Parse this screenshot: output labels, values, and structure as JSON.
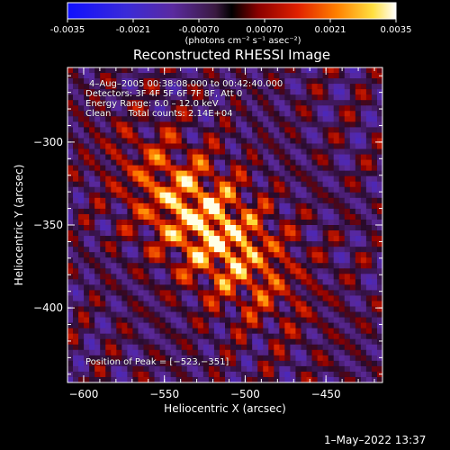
{
  "colorbar": {
    "tick_labels": [
      "-0.0035",
      "-0.0021",
      "-0.00070",
      "0.00070",
      "0.0021",
      "0.0035"
    ],
    "unit_label": "(photons cm⁻² s⁻¹ asec⁻²)",
    "range": [
      -0.0035,
      0.0035
    ]
  },
  "chart_data": {
    "type": "heatmap",
    "title": "Reconstructed RHESSI Image",
    "xlabel": "Heliocentric X (arcsec)",
    "ylabel": "Heliocentric Y (arcsec)",
    "xlim": [
      -610,
      -415
    ],
    "ylim": [
      -445,
      -255
    ],
    "x_ticks": [
      -600,
      -550,
      -500,
      -450
    ],
    "y_ticks": [
      -300,
      -350,
      -400
    ],
    "x_tick_labels": [
      "−600",
      "−550",
      "−500",
      "−450"
    ],
    "y_tick_labels": [
      "−300",
      "−350",
      "−400"
    ],
    "peak": [
      -523,
      -351
    ],
    "annotations": {
      "time_range": "4–Aug–2005 00:38:08.000 to 00:42:40.000",
      "detectors": "Detectors: 3F 4F 5F 6F 7F 8F, Att 0",
      "energy_range": "Energy Range: 6.0 – 12.0 keV",
      "method_counts": "Clean      Total counts: 2.14E+04",
      "peak_position": "Position of Peak = [−523,−351]"
    }
  },
  "footer": {
    "timestamp": "1–May–2022 13:37"
  }
}
